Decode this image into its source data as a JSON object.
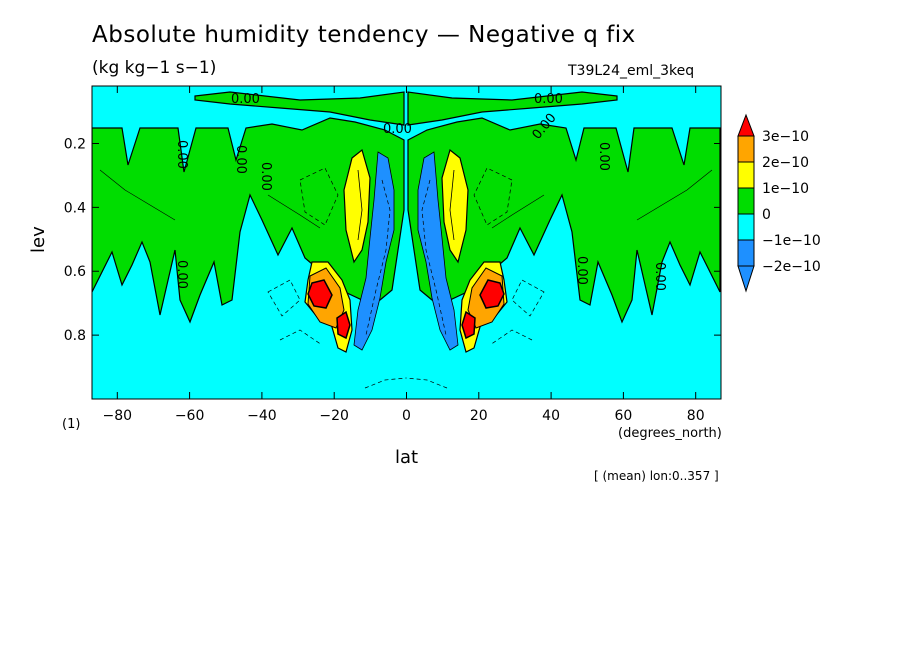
{
  "header": {
    "title": "Absolute humidity tendency — Negative q fix",
    "units": "(kg kg−1 s−1)",
    "run_name": "T39L24_eml_3keq"
  },
  "footer": {
    "mean_note": "[ (mean) lon:0..357 ]",
    "index_note": "(1)"
  },
  "colors": {
    "red": "#ff0000",
    "orange": "#ffa500",
    "yellow": "#ffff00",
    "green": "#00dd00",
    "cyan": "#00ffff",
    "blue": "#1e90ff",
    "background": "#ffffff"
  },
  "chart_data": {
    "type": "contour",
    "xlabel": "lat",
    "x_units": "(degrees_north)",
    "ylabel": "lev",
    "xlim": [
      -87,
      87
    ],
    "ylim": [
      1.0,
      0.02
    ],
    "y_inverted": true,
    "x_ticks": [
      -80,
      -60,
      -40,
      -20,
      0,
      20,
      40,
      60,
      80
    ],
    "x_tick_labels": [
      "−80",
      "−60",
      "−40",
      "−20",
      "0",
      "20",
      "40",
      "60",
      "80"
    ],
    "y_ticks": [
      0.2,
      0.4,
      0.6,
      0.8
    ],
    "y_tick_labels": [
      "0.2",
      "0.4",
      "0.6",
      "0.8"
    ],
    "levels": [
      -2e-10,
      -1e-10,
      0,
      1e-10,
      2e-10,
      3e-10
    ],
    "colorbar": {
      "labels": [
        "3e−10",
        "2e−10",
        "1e−10",
        "0",
        "−1e−10",
        "−2e−10"
      ],
      "colors": [
        "#ff0000",
        "#ffa500",
        "#ffff00",
        "#00dd00",
        "#00ffff",
        "#1e90ff",
        "#1e90ff"
      ]
    },
    "contour_labels": [
      "0.00",
      "0.00",
      "0.00",
      "0.00",
      "0.00",
      "0.00",
      "0.00",
      "0.00",
      "0.00",
      "0.00",
      "0.00"
    ],
    "features": [
      {
        "name": "upper positive band",
        "lat_range": [
          -87,
          87
        ],
        "lev_range": [
          0.03,
          0.06
        ],
        "value": "0 to 1e-10"
      },
      {
        "name": "mid-level positive region",
        "lat_range": [
          -87,
          87
        ],
        "lev_range": [
          0.1,
          0.7
        ],
        "value": "0 to 1e-10"
      },
      {
        "name": "southern positive maximum",
        "lat": -25,
        "lev": 0.67,
        "value": "> 3e-10"
      },
      {
        "name": "northern positive maximum",
        "lat": 25,
        "lev": 0.67,
        "value": "> 3e-10"
      },
      {
        "name": "southern negative minimum",
        "lat": -12,
        "lev": 0.5,
        "value": "< -2e-10"
      },
      {
        "name": "northern negative minimum",
        "lat": 12,
        "lev": 0.5,
        "value": "< -2e-10"
      }
    ]
  }
}
